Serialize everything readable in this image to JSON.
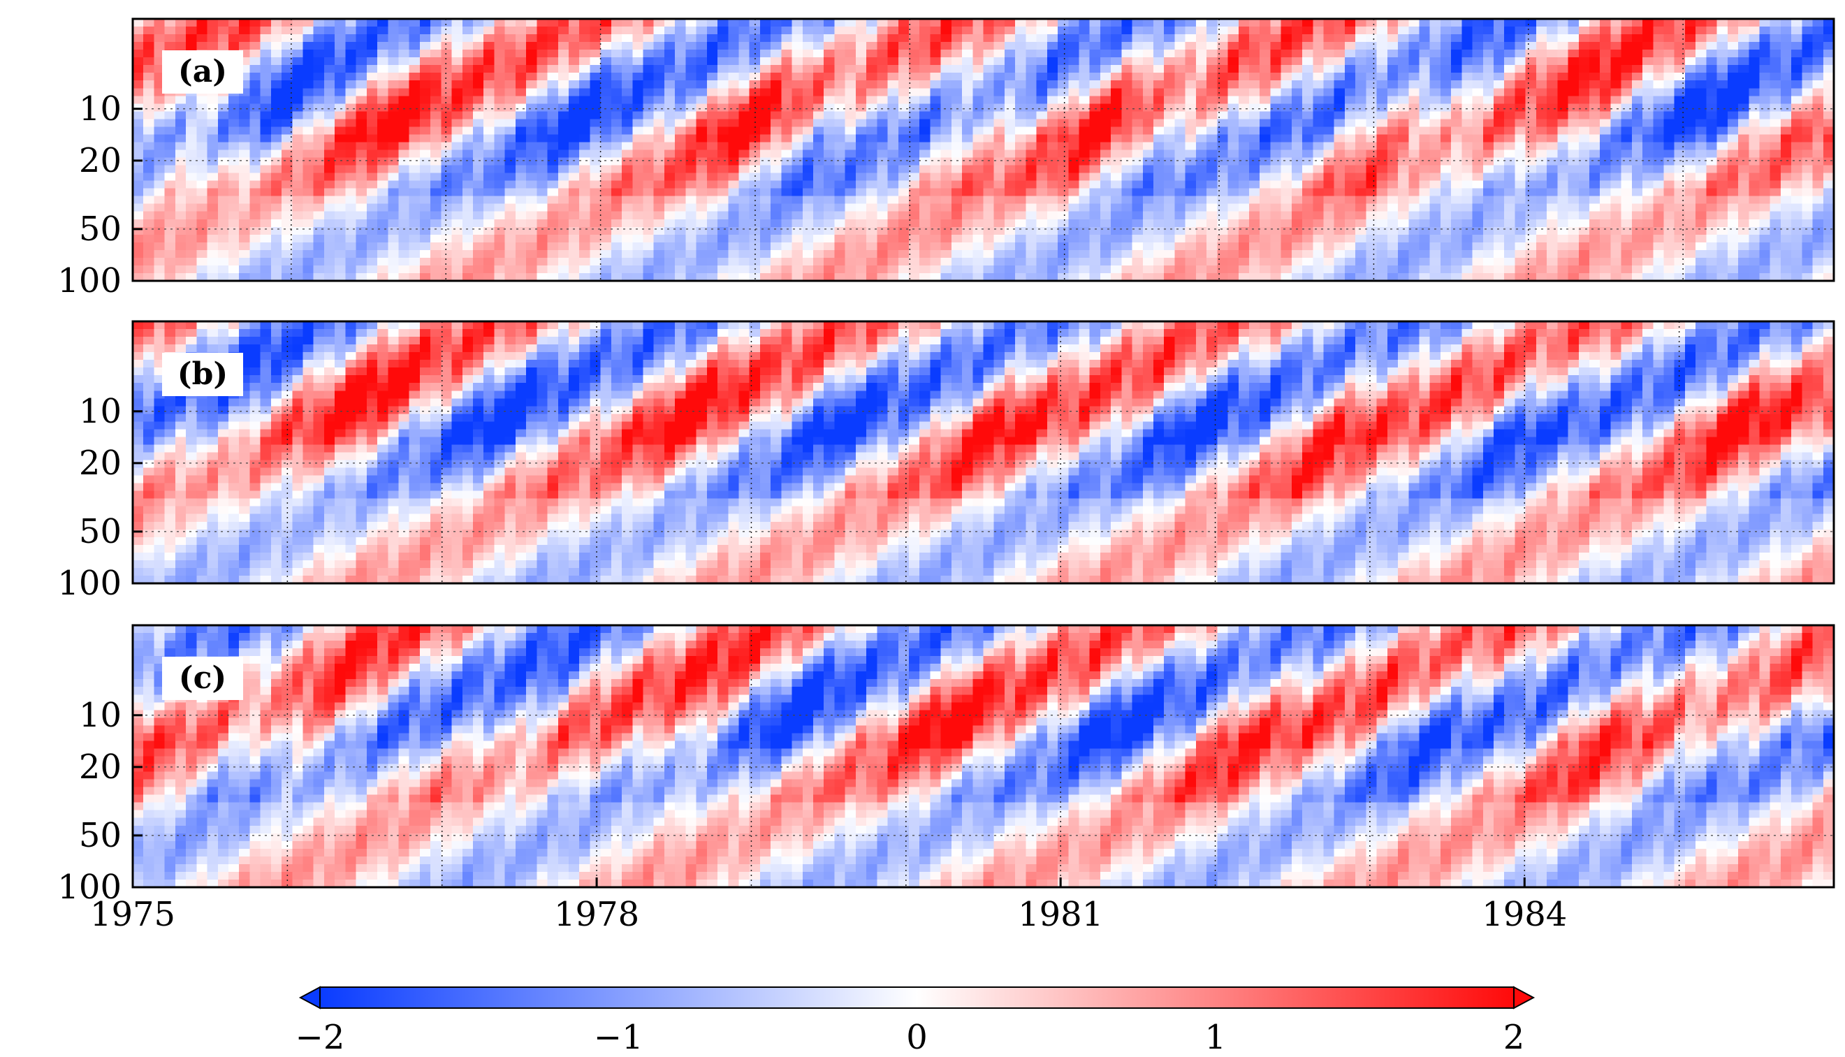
{
  "chart_data": {
    "type": "heatmap",
    "title": "",
    "xlabel": "",
    "ylabel": "",
    "colormap": {
      "low_color": "#0a3cff",
      "mid_color": "#ffffff",
      "high_color": "#ff0a0a",
      "range": [
        -2,
        2
      ],
      "ticks": [
        -2,
        -1,
        0,
        1,
        2
      ],
      "tick_labels": [
        "−2",
        "−1",
        "0",
        "1",
        "2"
      ],
      "extend": "both"
    },
    "x_axis": {
      "range": [
        1975.0,
        1986.0
      ],
      "ticks": [
        1975,
        1978,
        1981,
        1984
      ],
      "tick_labels": [
        "1975",
        "1978",
        "1981",
        "1984"
      ],
      "scale": "linear"
    },
    "y_axis": {
      "range": [
        100,
        3
      ],
      "ticks": [
        10,
        20,
        50,
        100
      ],
      "tick_labels": [
        "10",
        "20",
        "50",
        "100"
      ],
      "scale": "log",
      "inverted": true
    },
    "contour_levels": [
      -1,
      0,
      1
    ],
    "panels": [
      {
        "label": "(a)",
        "phase_offset": 0.0,
        "red_event_years": [
          1975.8,
          1977.0,
          1979.3,
          1980.8,
          1981.6,
          1983.4,
          1984.7
        ],
        "blue_event_years": [
          1976.3,
          1978.2,
          1979.8,
          1982.0,
          1983.9,
          1985.5
        ]
      },
      {
        "label": "(b)",
        "phase_offset": 0.25,
        "red_event_years": [
          1976.8,
          1978.9,
          1980.9,
          1983.1,
          1985.7
        ],
        "blue_event_years": [
          1976.0,
          1977.7,
          1979.9,
          1982.2,
          1984.3
        ]
      },
      {
        "label": "(c)",
        "phase_offset": 0.5,
        "red_event_years": [
          1975.3,
          1976.6,
          1979.0,
          1980.6,
          1982.5,
          1984.8
        ],
        "blue_event_years": [
          1976.1,
          1977.9,
          1979.6,
          1981.7,
          1983.7,
          1985.5
        ]
      }
    ]
  }
}
